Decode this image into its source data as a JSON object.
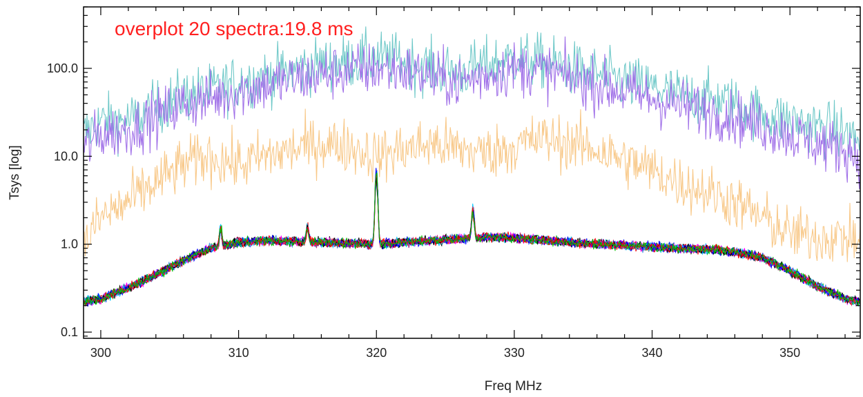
{
  "chart_data": {
    "type": "line",
    "title": "",
    "annotation": "overplot 20 spectra:19.8 ms",
    "xlabel": "Freq MHz",
    "ylabel": "Tsys [log]",
    "xlim": [
      298.75,
      355.1
    ],
    "ylim": [
      0.085,
      500
    ],
    "yscale": "log",
    "grid": false,
    "legend": "none",
    "x_ticks": [
      300,
      310,
      320,
      330,
      340,
      350
    ],
    "x_tick_labels": [
      "300",
      "310",
      "320",
      "330",
      "340",
      "350"
    ],
    "y_ticks": [
      0.1,
      1.0,
      10.0,
      100.0
    ],
    "y_tick_labels": [
      "0.1",
      "1.0",
      "10.0",
      "100.0"
    ],
    "annotation_color": "#ff2020",
    "series_envelope": {
      "description_colors": [
        "#000000",
        "#0000ff",
        "#ff0000",
        "#00c000",
        "#ff00ff",
        "#00c8ff",
        "#4a90e2",
        "#d0306f"
      ],
      "x": [
        298.75,
        300,
        302,
        304,
        306,
        308,
        310,
        312,
        314,
        316,
        318,
        320,
        322,
        324,
        326,
        328,
        330,
        332,
        334,
        336,
        338,
        340,
        342,
        344,
        346,
        348,
        350,
        352,
        354,
        355.1
      ],
      "y": [
        0.22,
        0.24,
        0.32,
        0.45,
        0.65,
        0.9,
        1.05,
        1.1,
        1.08,
        1.05,
        1.02,
        1.0,
        1.05,
        1.1,
        1.15,
        1.2,
        1.18,
        1.12,
        1.05,
        1.0,
        0.97,
        0.93,
        0.9,
        0.88,
        0.82,
        0.7,
        0.5,
        0.33,
        0.24,
        0.22
      ],
      "spikes": [
        {
          "x": 308.7,
          "y": 1.6
        },
        {
          "x": 315.0,
          "y": 1.7
        },
        {
          "x": 320.0,
          "y": 7.5
        },
        {
          "x": 327.0,
          "y": 2.8
        }
      ]
    },
    "series_upper": [
      {
        "color": "#6ec8c8",
        "x": [
          298.75,
          300,
          302,
          304,
          306,
          308,
          310,
          312,
          314,
          316,
          318,
          320,
          322,
          324,
          326,
          328,
          330,
          332,
          334,
          336,
          338,
          340,
          342,
          344,
          346,
          348,
          350,
          352,
          354,
          355.1
        ],
        "y": [
          18,
          25,
          25,
          35,
          50,
          55,
          70,
          80,
          95,
          110,
          120,
          130,
          120,
          100,
          90,
          110,
          130,
          120,
          100,
          85,
          70,
          60,
          50,
          45,
          40,
          30,
          25,
          22,
          18,
          15
        ]
      },
      {
        "color": "#a070e8",
        "x": [
          298.75,
          300,
          302,
          304,
          306,
          308,
          310,
          312,
          314,
          316,
          318,
          320,
          322,
          324,
          326,
          328,
          330,
          332,
          334,
          336,
          338,
          340,
          342,
          344,
          346,
          348,
          350,
          352,
          354,
          355.1
        ],
        "y": [
          12,
          18,
          20,
          28,
          40,
          45,
          55,
          65,
          75,
          85,
          95,
          100,
          95,
          80,
          70,
          85,
          100,
          95,
          80,
          65,
          55,
          45,
          38,
          33,
          28,
          22,
          18,
          14,
          12,
          10
        ]
      },
      {
        "color": "#f8c888",
        "x": [
          298.75,
          300,
          302,
          304,
          306,
          308,
          310,
          312,
          314,
          316,
          318,
          320,
          322,
          324,
          326,
          328,
          330,
          332,
          334,
          336,
          338,
          340,
          342,
          344,
          346,
          348,
          350,
          352,
          354,
          355.1
        ],
        "y": [
          1.0,
          2.0,
          3.0,
          5.0,
          8.0,
          10.0,
          8.0,
          10.0,
          12.0,
          14.0,
          13.0,
          10.0,
          12.0,
          14.0,
          12.0,
          11.0,
          13.0,
          16.0,
          14.0,
          12.0,
          9.0,
          7.0,
          5.0,
          4.0,
          3.0,
          2.0,
          1.3,
          1.2,
          1.2,
          1.1
        ]
      }
    ]
  }
}
